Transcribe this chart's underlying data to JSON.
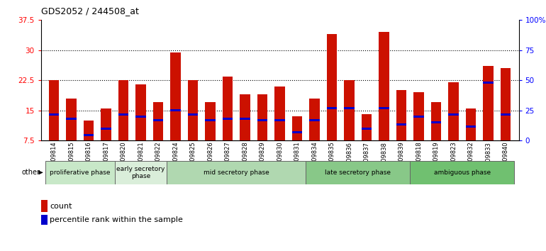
{
  "title": "GDS2052 / 244508_at",
  "samples": [
    "GSM109814",
    "GSM109815",
    "GSM109816",
    "GSM109817",
    "GSM109820",
    "GSM109821",
    "GSM109822",
    "GSM109824",
    "GSM109825",
    "GSM109826",
    "GSM109827",
    "GSM109828",
    "GSM109829",
    "GSM109830",
    "GSM109831",
    "GSM109834",
    "GSM109835",
    "GSM109836",
    "GSM109837",
    "GSM109838",
    "GSM109839",
    "GSM109818",
    "GSM109819",
    "GSM109823",
    "GSM109832",
    "GSM109833",
    "GSM109840"
  ],
  "count_values": [
    22.5,
    18.0,
    12.5,
    15.5,
    22.5,
    21.5,
    17.0,
    29.5,
    22.5,
    17.0,
    23.5,
    19.0,
    19.0,
    21.0,
    13.5,
    18.0,
    34.0,
    22.5,
    14.0,
    34.5,
    20.0,
    19.5,
    17.0,
    22.0,
    15.5,
    26.0,
    25.5
  ],
  "percentile_values": [
    14.0,
    13.0,
    8.8,
    10.5,
    14.0,
    13.5,
    12.5,
    15.0,
    14.0,
    12.5,
    13.0,
    13.0,
    12.5,
    12.5,
    9.5,
    12.5,
    15.5,
    15.5,
    10.5,
    15.5,
    11.5,
    13.5,
    12.0,
    14.0,
    11.0,
    22.0,
    14.0
  ],
  "phases": [
    {
      "label": "proliferative phase",
      "start": 0,
      "end": 4
    },
    {
      "label": "early secretory\nphase",
      "start": 4,
      "end": 7
    },
    {
      "label": "mid secretory phase",
      "start": 7,
      "end": 15
    },
    {
      "label": "late secretory phase",
      "start": 15,
      "end": 21
    },
    {
      "label": "ambiguous phase",
      "start": 21,
      "end": 27
    }
  ],
  "phase_colors": [
    "#c8e8c8",
    "#daeeda",
    "#b0d8b0",
    "#88c888",
    "#70c070"
  ],
  "ylim_left": [
    7.5,
    37.5
  ],
  "ylim_right": [
    0,
    100
  ],
  "yticks_left": [
    7.5,
    15.0,
    22.5,
    30.0,
    37.5
  ],
  "yticks_right": [
    0,
    25,
    50,
    75,
    100
  ],
  "bar_color_red": "#cc1100",
  "bar_color_blue": "#0000cc"
}
